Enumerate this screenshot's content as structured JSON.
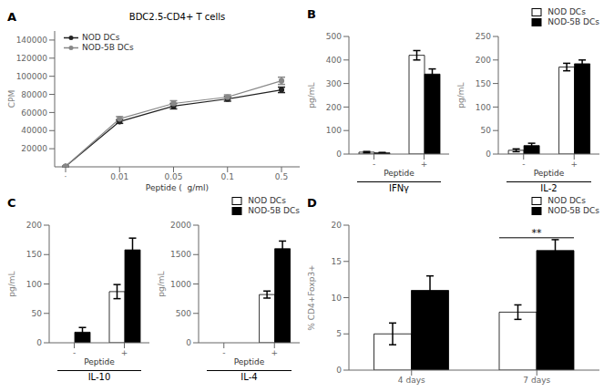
{
  "chart_data": [
    {
      "type": "line",
      "title": "BDC2.5-CD4+ T cells",
      "x_label": "Peptide (  g/ml)",
      "y_label": "CPM",
      "categories": [
        "·",
        "0.01",
        "0.05",
        "0.1",
        "0.5"
      ],
      "series": [
        {
          "name": "NOD DCs",
          "color": "#222222",
          "values": [
            500,
            50000,
            67000,
            75000,
            85000
          ],
          "errors": [
            200,
            2000,
            3000,
            2500,
            3000
          ]
        },
        {
          "name": "NOD-5B DCs",
          "color": "#888888",
          "values": [
            500,
            53000,
            70000,
            77000,
            95000
          ],
          "errors": [
            200,
            2500,
            3000,
            2500,
            4000
          ]
        }
      ],
      "ylim": [
        0,
        150000
      ],
      "yticks": [
        20000,
        40000,
        60000,
        80000,
        100000,
        120000,
        140000
      ],
      "legend": "upper left",
      "annotations": [
        {
          "text": "A"
        }
      ]
    },
    {
      "type": "bar",
      "title": "IFNγ",
      "x_label": "Peptide",
      "y_label": "pg/mL",
      "categories": [
        "-",
        "+"
      ],
      "series": [
        {
          "name": "NOD DCs",
          "color": "#ffffff",
          "values": [
            8,
            420
          ],
          "errors": [
            3,
            20
          ]
        },
        {
          "name": "NOD-5B DCs",
          "color": "#000000",
          "values": [
            5,
            340
          ],
          "errors": [
            2,
            22
          ]
        }
      ],
      "ylim": [
        0,
        500
      ],
      "yticks": [
        0,
        100,
        200,
        300,
        400,
        500
      ],
      "annotations": [
        {
          "text": "B"
        }
      ]
    },
    {
      "type": "bar",
      "title": "IL-2",
      "x_label": "Peptide",
      "y_label": "pg/mL",
      "categories": [
        "-",
        "+"
      ],
      "series": [
        {
          "name": "NOD DCs",
          "color": "#ffffff",
          "values": [
            8,
            185
          ],
          "errors": [
            3,
            8
          ]
        },
        {
          "name": "NOD-5B DCs",
          "color": "#000000",
          "values": [
            18,
            192
          ],
          "errors": [
            5,
            8
          ]
        }
      ],
      "ylim": [
        0,
        250
      ],
      "yticks": [
        0,
        50,
        100,
        150,
        200,
        250
      ],
      "legend": "upper right"
    },
    {
      "type": "bar",
      "title": "IL-10",
      "x_label": "Peptide",
      "y_label": "pg/mL",
      "categories": [
        "-",
        "+"
      ],
      "series": [
        {
          "name": "NOD DCs",
          "color": "#ffffff",
          "values": [
            0,
            87
          ],
          "errors": [
            0,
            12
          ]
        },
        {
          "name": "NOD-5B DCs",
          "color": "#000000",
          "values": [
            18,
            158
          ],
          "errors": [
            8,
            20
          ]
        }
      ],
      "ylim": [
        0,
        200
      ],
      "yticks": [
        0,
        50,
        100,
        150,
        200
      ],
      "annotations": [
        {
          "text": "C"
        }
      ]
    },
    {
      "type": "bar",
      "title": "IL-4",
      "x_label": "Peptide",
      "y_label": "pg/mL",
      "categories": [
        "-",
        "+"
      ],
      "series": [
        {
          "name": "NOD DCs",
          "color": "#ffffff",
          "values": [
            0,
            820
          ],
          "errors": [
            0,
            60
          ]
        },
        {
          "name": "NOD-5B DCs",
          "color": "#000000",
          "values": [
            0,
            1600
          ],
          "errors": [
            0,
            130
          ]
        }
      ],
      "ylim": [
        0,
        2000
      ],
      "yticks": [
        0,
        500,
        1000,
        1500,
        2000
      ],
      "legend": "upper right"
    },
    {
      "type": "bar",
      "y_label": "% CD4+Foxp3+",
      "categories": [
        "4 days",
        "7 days"
      ],
      "series": [
        {
          "name": "NOD DCs",
          "color": "#ffffff",
          "values": [
            5,
            8
          ],
          "errors": [
            1.5,
            1
          ]
        },
        {
          "name": "NOD-5B DCs",
          "color": "#000000",
          "values": [
            11,
            16.5
          ],
          "errors": [
            2,
            1.5
          ]
        }
      ],
      "ylim": [
        0,
        20
      ],
      "yticks": [
        0,
        5,
        10,
        15,
        20
      ],
      "legend": "upper right",
      "annotations": [
        {
          "text": "D"
        },
        {
          "text": "**",
          "category": "7 days"
        }
      ]
    }
  ]
}
